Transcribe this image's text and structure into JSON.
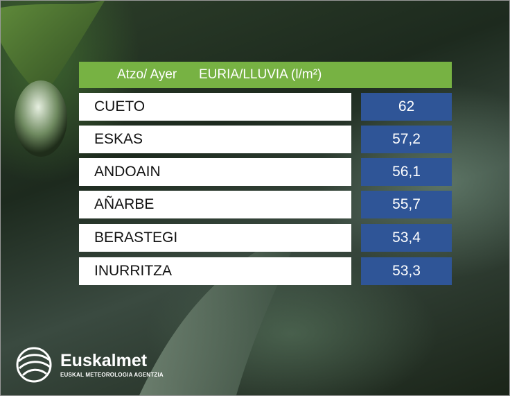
{
  "header": {
    "label": "Atzo/ Ayer",
    "title": "EURIA/LLUVIA (l/m²)"
  },
  "table": {
    "rows": [
      [
        "CUETO",
        "62"
      ],
      [
        "ESKAS",
        "57,2"
      ],
      [
        "ANDOAIN",
        "56,1"
      ],
      [
        "AÑARBE",
        "55,7"
      ],
      [
        "BERASTEGI",
        "53,4"
      ],
      [
        "INURRITZA",
        "53,3"
      ]
    ]
  },
  "logo": {
    "name": "Euskalmet",
    "subtitle": "EUSKAL METEOROLOGIA AGENTZIA"
  }
}
